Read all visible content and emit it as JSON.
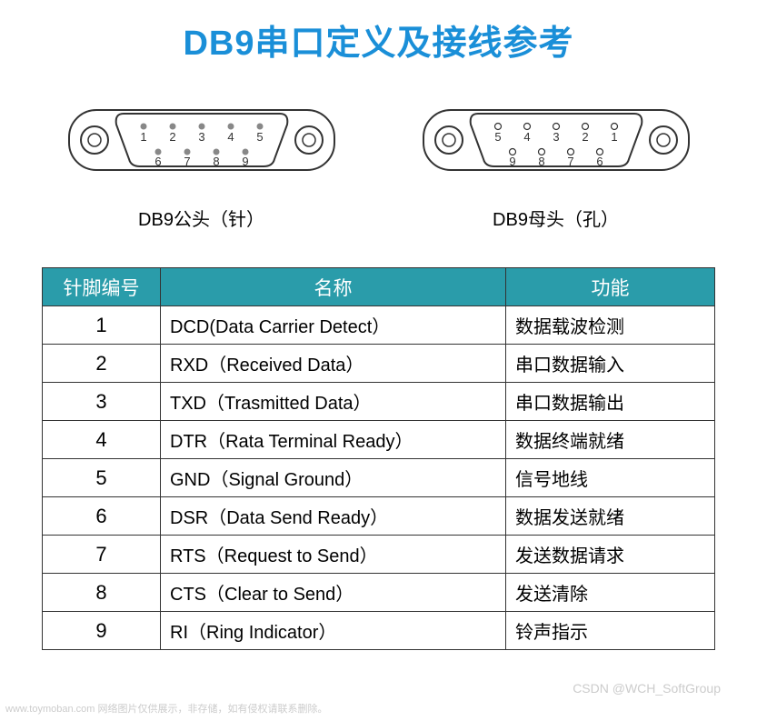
{
  "title": {
    "text": "DB9串口定义及接线参考",
    "color": "#1a8fd8",
    "fontsize": 38
  },
  "connectors": {
    "male": {
      "label": "DB9公头（针）",
      "toprow": [
        "1",
        "2",
        "3",
        "4",
        "5"
      ],
      "bottomrow": [
        "6",
        "7",
        "8",
        "9"
      ],
      "pin_fill": "#888888"
    },
    "female": {
      "label": "DB9母头（孔）",
      "toprow": [
        "5",
        "4",
        "3",
        "2",
        "1"
      ],
      "bottomrow": [
        "9",
        "8",
        "7",
        "6"
      ],
      "pin_fill": "none"
    },
    "stroke": "#333333",
    "label_fontsize": 20
  },
  "table": {
    "header_bg": "#2a9caa",
    "header_color": "#ffffff",
    "border_color": "#333333",
    "columns": [
      "针脚编号",
      "名称",
      "功能"
    ],
    "rows": [
      [
        "1",
        "DCD(Data Carrier Detect）",
        "数据载波检测"
      ],
      [
        "2",
        "RXD（Received Data）",
        "串口数据输入"
      ],
      [
        "3",
        "TXD（Trasmitted Data）",
        "串口数据输出"
      ],
      [
        "4",
        "DTR（Rata Terminal Ready）",
        "数据终端就绪"
      ],
      [
        "5",
        "GND（Signal Ground）",
        "信号地线"
      ],
      [
        "6",
        "DSR（Data Send Ready）",
        "数据发送就绪"
      ],
      [
        "7",
        "RTS（Request to Send）",
        "发送数据请求"
      ],
      [
        "8",
        "CTS（Clear to Send）",
        "发送清除"
      ],
      [
        "9",
        "RI（Ring Indicator）",
        "铃声指示"
      ]
    ]
  },
  "watermarks": {
    "left": "www.toymoban.com  网络图片仅供展示，非存储，如有侵权请联系删除。",
    "right": "CSDN @WCH_SoftGroup"
  }
}
